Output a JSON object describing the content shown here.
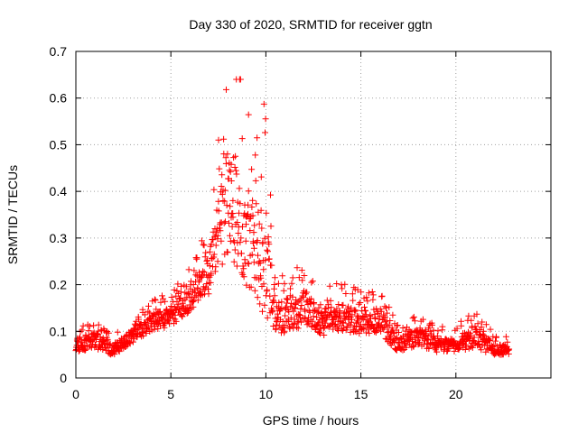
{
  "chart_data": {
    "type": "scatter",
    "title": "Day 330 of 2020, SRMTID for receiver ggtn",
    "xlabel": "GPS time / hours",
    "ylabel": "SRMTID / TECUs",
    "xlim": [
      0,
      25
    ],
    "ylim": [
      0,
      0.7
    ],
    "xticks": [
      0,
      5,
      10,
      15,
      20
    ],
    "yticks": [
      0,
      0.1,
      0.2,
      0.3,
      0.4,
      0.5,
      0.6,
      0.7
    ],
    "xtick_labels": [
      "0",
      "5",
      "10",
      "15",
      "20"
    ],
    "ytick_labels": [
      "0",
      "0.1",
      "0.2",
      "0.3",
      "0.4",
      "0.5",
      "0.6",
      "0.7"
    ],
    "grid": true,
    "marker": "+",
    "series": [
      {
        "name": "SRMTID",
        "color": "#ff0000",
        "x_range": [
          0,
          22.8
        ],
        "approx_points": 1400,
        "profile": [
          {
            "x": 0.0,
            "center": 0.07,
            "spread": 0.03
          },
          {
            "x": 1.0,
            "center": 0.08,
            "spread": 0.035
          },
          {
            "x": 2.0,
            "center": 0.06,
            "spread": 0.025
          },
          {
            "x": 3.0,
            "center": 0.09,
            "spread": 0.03
          },
          {
            "x": 4.0,
            "center": 0.12,
            "spread": 0.035
          },
          {
            "x": 5.0,
            "center": 0.13,
            "spread": 0.04
          },
          {
            "x": 6.0,
            "center": 0.17,
            "spread": 0.06
          },
          {
            "x": 7.0,
            "center": 0.22,
            "spread": 0.08
          },
          {
            "x": 8.0,
            "center": 0.38,
            "spread": 0.25
          },
          {
            "x": 8.5,
            "center": 0.35,
            "spread": 0.25
          },
          {
            "x": 9.0,
            "center": 0.33,
            "spread": 0.27
          },
          {
            "x": 9.5,
            "center": 0.28,
            "spread": 0.2
          },
          {
            "x": 10.0,
            "center": 0.25,
            "spread": 0.28
          },
          {
            "x": 10.5,
            "center": 0.14,
            "spread": 0.08
          },
          {
            "x": 11.0,
            "center": 0.13,
            "spread": 0.07
          },
          {
            "x": 12.0,
            "center": 0.15,
            "spread": 0.08
          },
          {
            "x": 13.0,
            "center": 0.12,
            "spread": 0.06
          },
          {
            "x": 14.0,
            "center": 0.13,
            "spread": 0.06
          },
          {
            "x": 15.0,
            "center": 0.12,
            "spread": 0.05
          },
          {
            "x": 16.0,
            "center": 0.12,
            "spread": 0.06
          },
          {
            "x": 17.0,
            "center": 0.07,
            "spread": 0.03
          },
          {
            "x": 18.0,
            "center": 0.09,
            "spread": 0.04
          },
          {
            "x": 19.0,
            "center": 0.07,
            "spread": 0.03
          },
          {
            "x": 20.0,
            "center": 0.07,
            "spread": 0.03
          },
          {
            "x": 21.0,
            "center": 0.09,
            "spread": 0.05
          },
          {
            "x": 22.0,
            "center": 0.06,
            "spread": 0.025
          },
          {
            "x": 22.8,
            "center": 0.06,
            "spread": 0.02
          }
        ]
      }
    ]
  }
}
